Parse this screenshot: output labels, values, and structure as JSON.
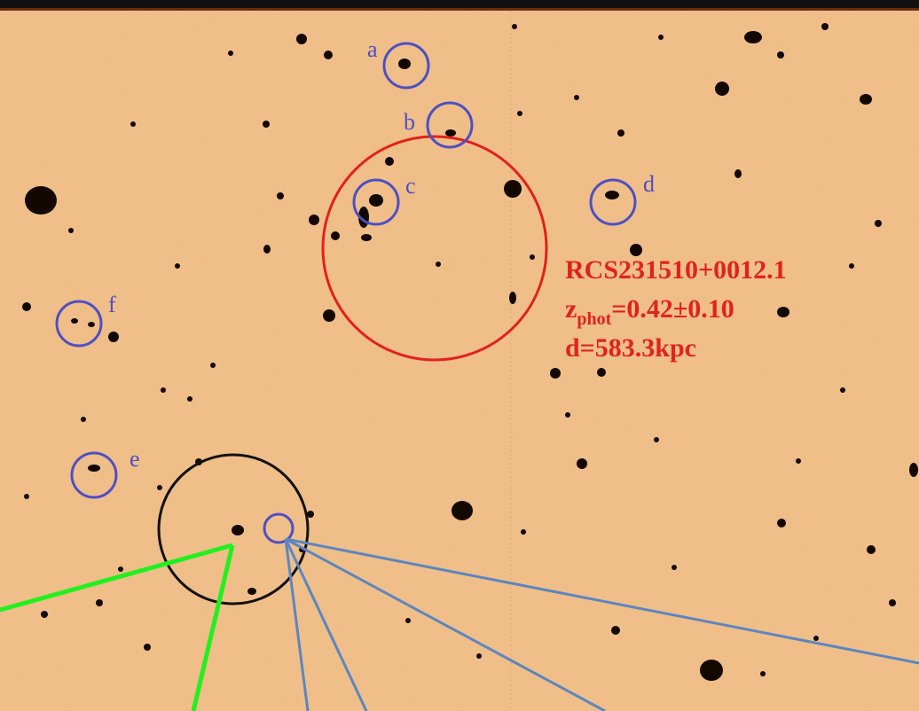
{
  "labels": [
    "a",
    "b",
    "c",
    "d",
    "e",
    "f"
  ],
  "annotation": {
    "name": "RCS231510+0012.1",
    "redshift": {
      "symbol": "z",
      "subscript": "phot",
      "value": "=0.42±0.10"
    },
    "distance": "d=583.3kpc"
  }
}
